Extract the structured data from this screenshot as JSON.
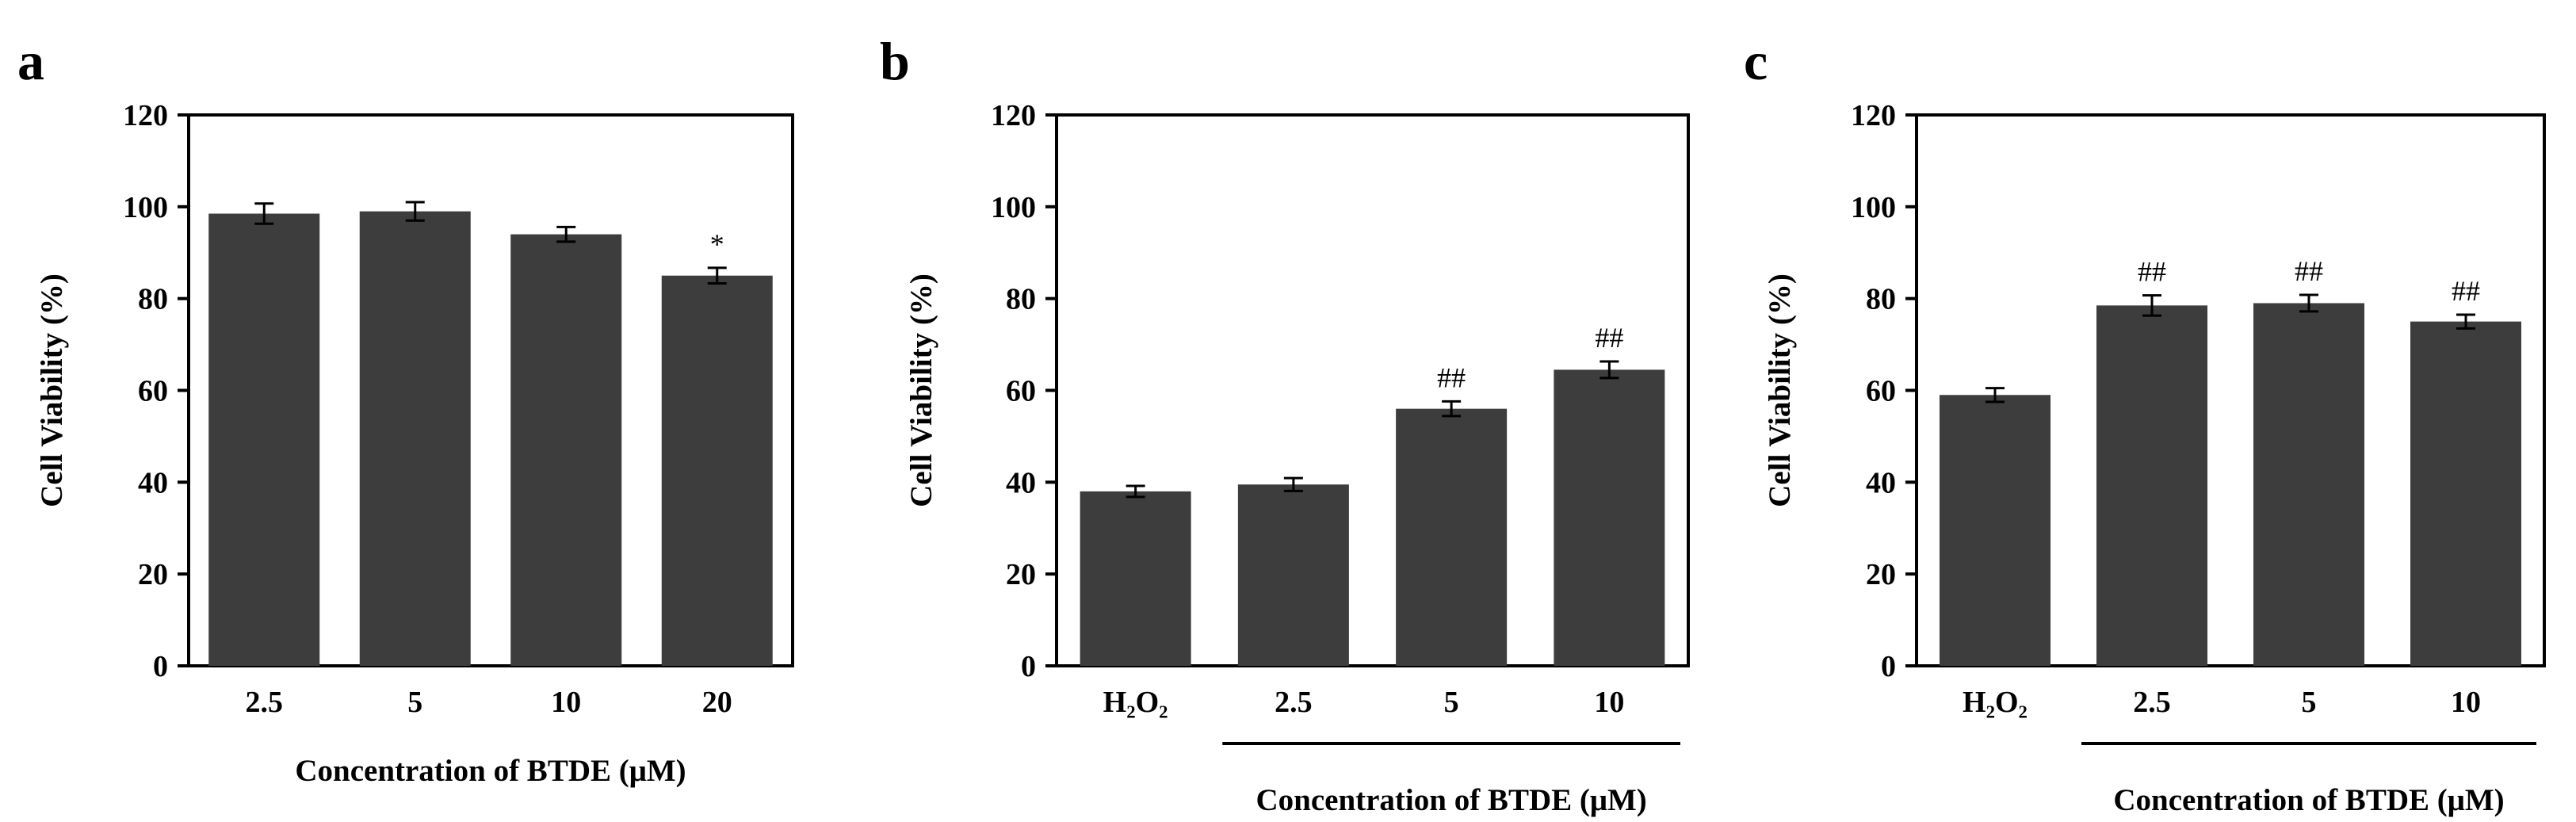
{
  "figure": {
    "colors": {
      "bar": "#3d3d3d",
      "axis": "#000000",
      "background": "#ffffff"
    }
  },
  "chart_data": [
    {
      "panel": "a",
      "type": "bar",
      "categories": [
        "2.5",
        "5",
        "10",
        "20"
      ],
      "values": [
        98.5,
        99,
        94,
        85
      ],
      "errors": [
        2.2,
        2.0,
        1.6,
        1.7
      ],
      "annotations": [
        "",
        "",
        "",
        "*"
      ],
      "ylabel": "Cell Viability (%)",
      "xlabel": "Concentration of BTDE (μM)",
      "ylim": [
        0,
        120
      ],
      "yticks": [
        0,
        20,
        40,
        60,
        80,
        100,
        120
      ],
      "group_underline": false
    },
    {
      "panel": "b",
      "type": "bar",
      "categories": [
        "H₂O₂",
        "2.5",
        "5",
        "10"
      ],
      "values": [
        38,
        39.5,
        56,
        64.5
      ],
      "errors": [
        1.2,
        1.4,
        1.6,
        1.8
      ],
      "annotations": [
        "",
        "",
        "##",
        "##"
      ],
      "ylabel": "Cell Viability (%)",
      "xlabel": "Concentration of BTDE (μM)",
      "ylim": [
        0,
        120
      ],
      "yticks": [
        0,
        20,
        40,
        60,
        80,
        100,
        120
      ],
      "group_underline": true
    },
    {
      "panel": "c",
      "type": "bar",
      "categories": [
        "H₂O₂",
        "2.5",
        "5",
        "10"
      ],
      "values": [
        59,
        78.5,
        79,
        75
      ],
      "errors": [
        1.5,
        2.2,
        1.8,
        1.5
      ],
      "annotations": [
        "",
        "##",
        "##",
        "##"
      ],
      "ylabel": "Cell Viability (%)",
      "xlabel": "Concentration of BTDE (μM)",
      "ylim": [
        0,
        120
      ],
      "yticks": [
        0,
        20,
        40,
        60,
        80,
        100,
        120
      ],
      "group_underline": true
    }
  ]
}
